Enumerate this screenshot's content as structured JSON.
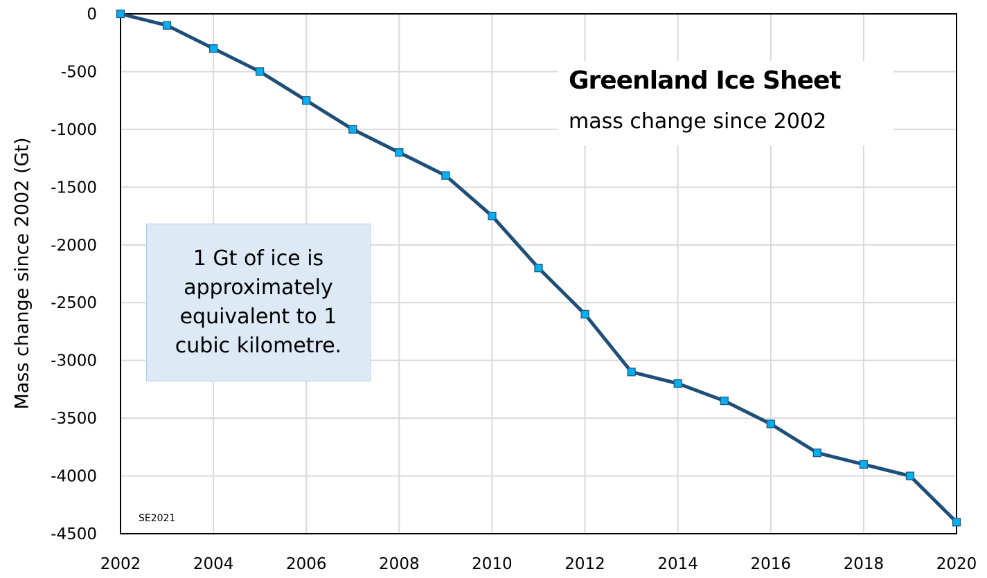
{
  "chart_data": {
    "type": "line",
    "title": "Greenland Ice Sheet",
    "subtitle": "mass change since 2002",
    "xlabel": "",
    "ylabel": "Mass change since 2002 (Gt)",
    "xlim": [
      2002,
      2020
    ],
    "ylim": [
      -4500,
      0
    ],
    "xticks": [
      2002,
      2004,
      2006,
      2008,
      2010,
      2012,
      2014,
      2016,
      2018,
      2020
    ],
    "yticks": [
      0,
      -500,
      -1000,
      -1500,
      -2000,
      -2500,
      -3000,
      -3500,
      -4000,
      -4500
    ],
    "grid": true,
    "x": [
      2002,
      2003,
      2004,
      2005,
      2006,
      2007,
      2008,
      2009,
      2010,
      2011,
      2012,
      2013,
      2014,
      2015,
      2016,
      2017,
      2018,
      2019,
      2020
    ],
    "values": [
      0,
      -100,
      -300,
      -500,
      -750,
      -1000,
      -1200,
      -1400,
      -1750,
      -2200,
      -2600,
      -3100,
      -3200,
      -3350,
      -3550,
      -3800,
      -3900,
      -4000,
      -4400
    ],
    "line_color": "#1f4e79",
    "marker_color": "#00b0f0",
    "annotation": "1 Gt of ice is approximately equivalent to 1 cubic kilometre.",
    "credit": "SE2021"
  }
}
